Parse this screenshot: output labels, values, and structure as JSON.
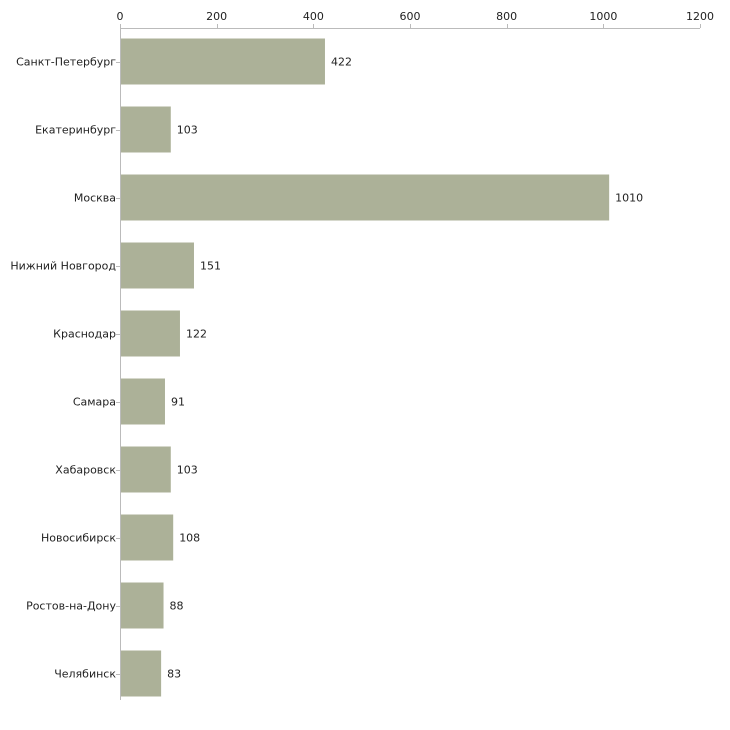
{
  "chart_data": {
    "type": "bar",
    "orientation": "horizontal",
    "title": "",
    "xlabel": "",
    "ylabel": "",
    "xlim": [
      0,
      1200
    ],
    "xticks": [
      0,
      200,
      400,
      600,
      800,
      1000,
      1200
    ],
    "axis_position": "top",
    "grid": false,
    "legend": "none",
    "categories": [
      "Санкт-Петербург",
      "Екатеринбург",
      "Москва",
      "Нижний Новгород",
      "Краснодар",
      "Самара",
      "Хабаровск",
      "Новосибирск",
      "Ростов-на-Дону",
      "Челябинск"
    ],
    "values": [
      422,
      103,
      1010,
      151,
      122,
      91,
      103,
      108,
      88,
      83
    ],
    "bar_color": "#acb198",
    "axis_color": "#bbbbbb"
  }
}
